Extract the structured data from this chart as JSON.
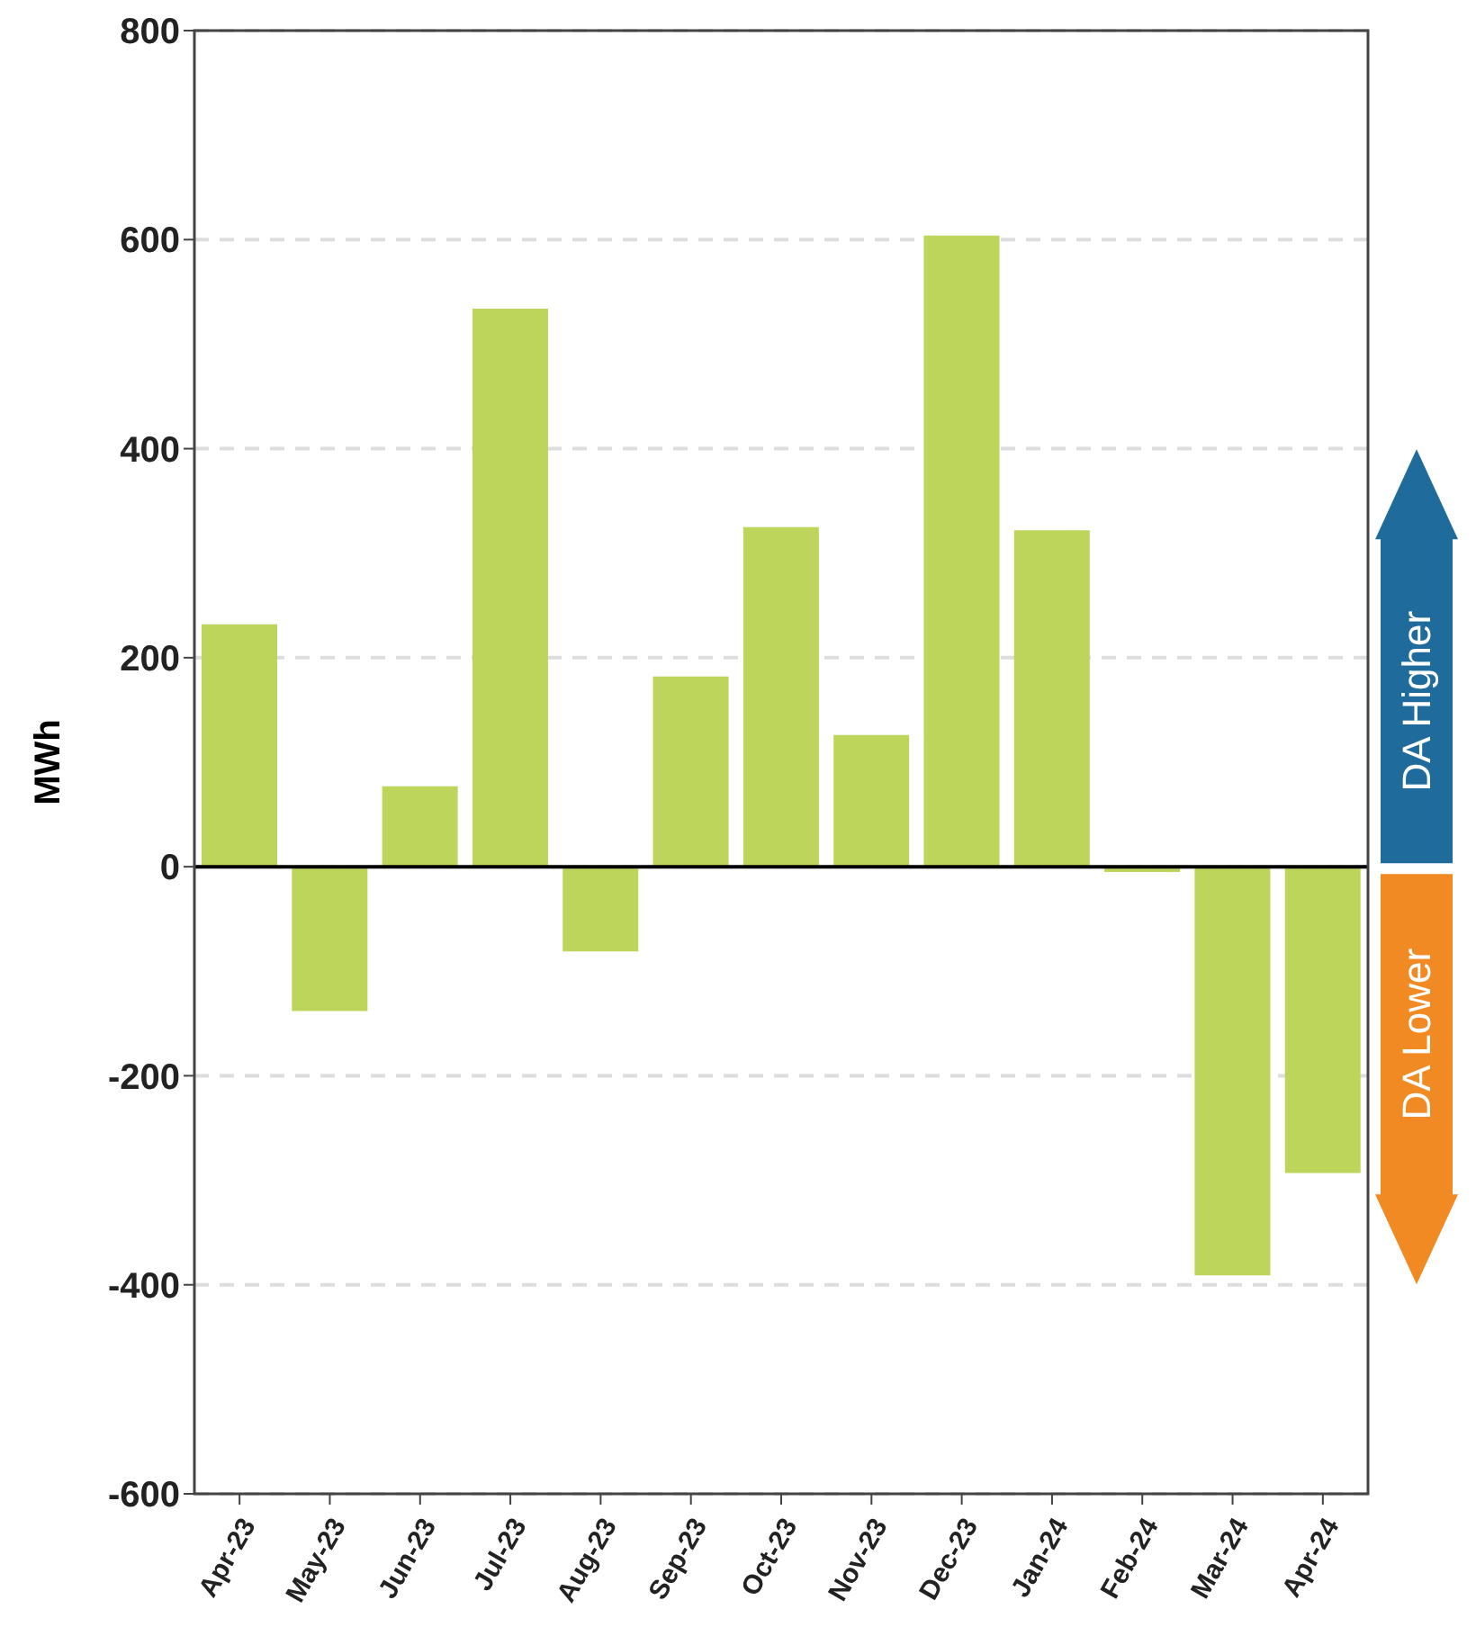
{
  "chart_data": {
    "type": "bar",
    "ylabel": "MWh",
    "categories": [
      "Apr-23",
      "May-23",
      "Jun-23",
      "Jul-23",
      "Aug-23",
      "Sep-23",
      "Oct-23",
      "Nov-23",
      "Dec-23",
      "Jan-24",
      "Feb-24",
      "Mar-24",
      "Apr-24"
    ],
    "values": [
      232,
      -138,
      77,
      534,
      -81,
      182,
      325,
      126,
      604,
      322,
      -5,
      -391,
      -293
    ],
    "color": "#bdd55b",
    "ylim": [
      -600,
      800
    ],
    "yticks": [
      -600,
      -400,
      -200,
      0,
      200,
      400,
      600,
      800
    ],
    "grid": "y",
    "ref_lines": [
      {
        "axis": "y",
        "value": 0,
        "color": "#000000"
      }
    ],
    "annotations": [
      "DA Higher",
      "DA Lower"
    ]
  }
}
